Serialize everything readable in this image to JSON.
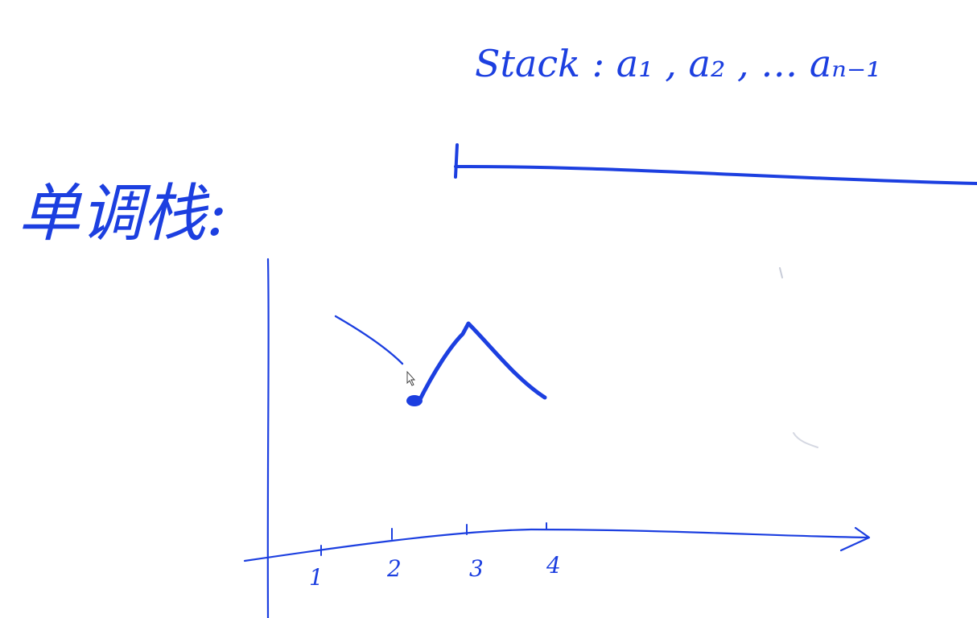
{
  "colors": {
    "ink": "#1c3fe0",
    "background": "#ffffff"
  },
  "heading": {
    "text": "单调栈:"
  },
  "stack_note": {
    "text": "Stack : a₁ , a₂ , … aₙ₋₁"
  },
  "axis": {
    "tick_labels": [
      "1",
      "2",
      "3",
      "4"
    ]
  },
  "cursor": {
    "icon": "arrow-pointer-icon"
  }
}
